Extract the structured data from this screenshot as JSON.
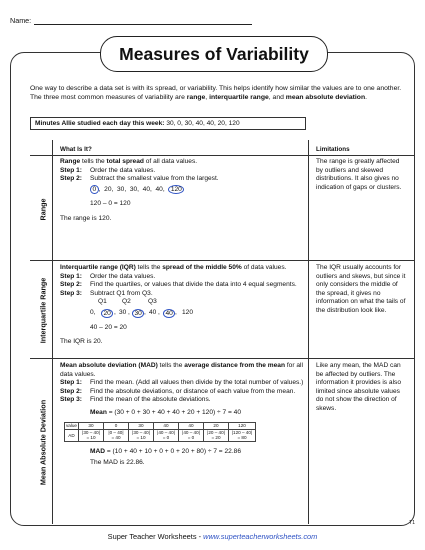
{
  "header": {
    "name_label": "Name:"
  },
  "title": "Measures of Variability",
  "intro": {
    "part1": "One way to describe a data set is with its spread, or variability. This helps identify how similar the values are to one another. The three most common measures of variability are ",
    "term1": "range",
    "sep1": ", ",
    "term2": "interquartile range",
    "sep2": ", and ",
    "term3": "mean absolute deviation",
    "end": "."
  },
  "data_box": {
    "label": "Minutes Allie studied each day this week:",
    "values": "30, 0, 30, 40, 40, 20, 120"
  },
  "columns": {
    "what": "What Is It?",
    "limitations": "Limitations"
  },
  "range": {
    "side_label": "Range",
    "def_a": "Range",
    "def_b": " tells the ",
    "def_c": "total spread",
    "def_d": " of all data values.",
    "step1_label": "Step 1:",
    "step1_text": "Order the data values.",
    "step2_label": "Step 2:",
    "step2_text": "Subtract the smallest value from the largest.",
    "ordered_first": "0",
    "ordered_mid": ",  20,  30,  30,  40,  40,  ",
    "ordered_last": "120",
    "calc": "120 – 0 = 120",
    "answer": "The range is 120.",
    "limitation": "The range is greatly affected by outliers and skewed distributions. It also gives no indication of gaps or clusters."
  },
  "iqr": {
    "side_label": "Interquartile Range",
    "def_a": "Interquartile range (IQR)",
    "def_b": " tells the ",
    "def_c": "spread of the middle 50%",
    "def_d": " of data values.",
    "step1_label": "Step 1:",
    "step1_text": "Order the data values.",
    "step2_label": "Step 2:",
    "step2_text": "Find the quartiles, or values that divide the data into 4 equal segments.",
    "step3_label": "Step 3:",
    "step3_text": "Subtract Q1 from Q3.",
    "q1": "Q1",
    "q2": "Q2",
    "q3": "Q3",
    "v0": "0,",
    "v1": "20",
    "v2": "30",
    "v3": "30",
    "v4": "40",
    "v5": "40",
    "v6": "120",
    "calc": "40 – 20 = 20",
    "answer": "The IQR is 20.",
    "limitation": "The IQR usually accounts for outliers and skews, but since it only considers the middle of the spread, it gives no information on what the tails of the distribution look like."
  },
  "mad": {
    "side_label": "Mean Absolute Deviation",
    "def_a": "Mean absolute deviation (MAD)",
    "def_b": " tells the ",
    "def_c": "average distance from the mean",
    "def_d": " for all data values.",
    "step1_label": "Step 1:",
    "step1_text": "Find the mean. (Add all values then divide by the total number of values.)",
    "step2_label": "Step 2:",
    "step2_text": "Find the absolute deviations, or distance of each value from the mean.",
    "step3_label": "Step 3:",
    "step3_text": "Find the mean of the absolute deviations.",
    "mean_label": "Mean",
    "mean_calc": " = (30 + 0 + 30 + 40 + 40 + 20 + 120) ÷ 7 = 40",
    "table_row1": [
      "value",
      "30",
      "0",
      "30",
      "40",
      "40",
      "20",
      "120"
    ],
    "table_row2a": [
      "AD",
      "|30 – 40|",
      "|0 – 40|",
      "|30 – 40|",
      "|40 – 40|",
      "|40 – 40|",
      "|20 – 40|",
      "|120 – 40|"
    ],
    "table_row2b": [
      "",
      "= 10",
      "= 40",
      "= 10",
      "= 0",
      "= 0",
      "= 20",
      "= 80"
    ],
    "mad_label": "MAD",
    "mad_calc": " = (10 + 40 + 10 + 0 + 0 + 20 + 80) ÷ 7 = 22.86",
    "answer": "The MAD is 22.86.",
    "limitation": "Like any mean, the MAD can be affected by outliers. The information it provides is also limited since absolute values do not show the direction of skews."
  },
  "footer": {
    "brand": "Super Teacher Worksheets - ",
    "url": "www.superteacherworksheets.com"
  },
  "page_code": "T1"
}
